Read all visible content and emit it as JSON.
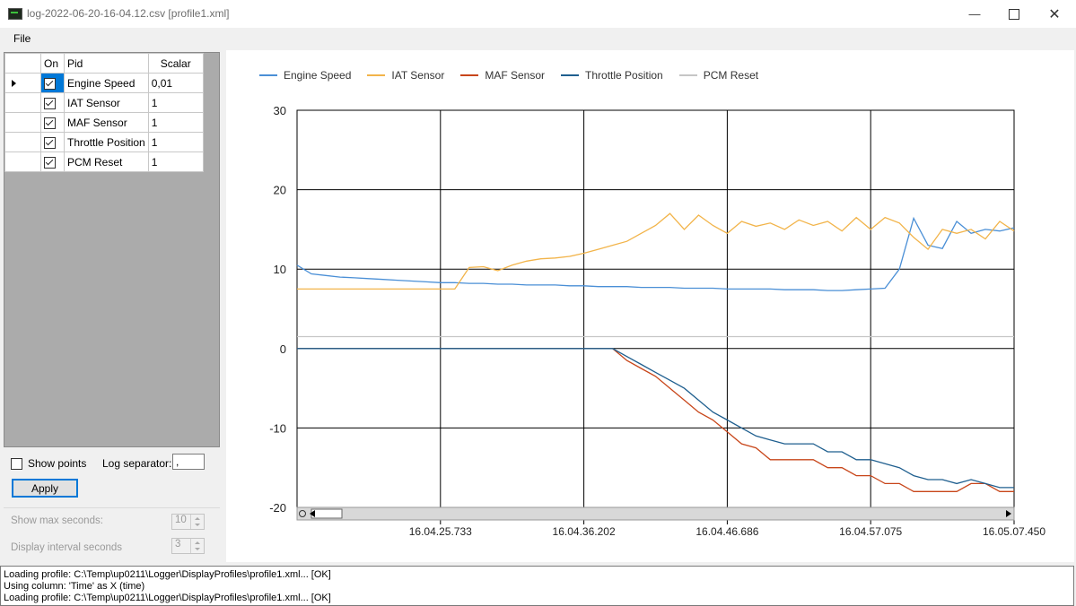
{
  "window": {
    "title": "log-2022-06-20-16-04.12.csv [profile1.xml]",
    "minimize_icon": "minimize-icon",
    "maximize_icon": "maximize-icon",
    "close_icon": "close-icon"
  },
  "menu": {
    "file": "File"
  },
  "grid": {
    "headers": {
      "on": "On",
      "pid": "Pid",
      "scalar": "Scalar"
    },
    "rows": [
      {
        "on": true,
        "pid": "Engine Speed",
        "scalar": "0,01",
        "current": true
      },
      {
        "on": true,
        "pid": "IAT Sensor",
        "scalar": "1"
      },
      {
        "on": true,
        "pid": "MAF Sensor",
        "scalar": "1"
      },
      {
        "on": true,
        "pid": "Throttle Position",
        "scalar": "1"
      },
      {
        "on": true,
        "pid": "PCM Reset",
        "scalar": "1"
      }
    ]
  },
  "options": {
    "show_points_label": "Show points",
    "show_points_checked": false,
    "log_separator_label": "Log separator:",
    "log_separator_value": ",",
    "apply_label": "Apply",
    "max_seconds_label": "Show max seconds:",
    "max_seconds_value": "10",
    "interval_label": "Display interval seconds",
    "interval_value": "3"
  },
  "chart_data": {
    "type": "line",
    "ylim": [
      -20,
      30
    ],
    "yticks": [
      "30",
      "20",
      "10",
      "0",
      "-10",
      "-20"
    ],
    "xticks": [
      "16.04.25.733",
      "16.04.36.202",
      "16.04.46.686",
      "16.04.57.075",
      "16.05.07.450"
    ],
    "grid": true,
    "legend_position": "top-left",
    "x": [
      0,
      1,
      2,
      3,
      4,
      5,
      6,
      7,
      8,
      9,
      10,
      11,
      12,
      13,
      14,
      15,
      16,
      17,
      18,
      19,
      20,
      21,
      22,
      23,
      24,
      25,
      26,
      27,
      28,
      29,
      30,
      31,
      32,
      33,
      34,
      35,
      36,
      37,
      38,
      39,
      40,
      41,
      42,
      43,
      44,
      45,
      46,
      47,
      48,
      49,
      50
    ],
    "series": [
      {
        "name": "Engine Speed",
        "color": "#4a8fd6",
        "values": [
          10.5,
          9.4,
          9.2,
          9.0,
          8.9,
          8.8,
          8.7,
          8.6,
          8.5,
          8.4,
          8.3,
          8.3,
          8.2,
          8.2,
          8.1,
          8.1,
          8.0,
          8.0,
          8.0,
          7.9,
          7.9,
          7.8,
          7.8,
          7.8,
          7.7,
          7.7,
          7.7,
          7.6,
          7.6,
          7.6,
          7.5,
          7.5,
          7.5,
          7.5,
          7.4,
          7.4,
          7.4,
          7.3,
          7.3,
          7.4,
          7.5,
          7.6,
          10.0,
          16.4,
          13.0,
          12.6,
          16.0,
          14.5,
          15.0,
          14.8,
          15.2
        ]
      },
      {
        "name": "IAT Sensor",
        "color": "#f2b44a",
        "values": [
          7.5,
          7.5,
          7.5,
          7.5,
          7.5,
          7.5,
          7.5,
          7.5,
          7.5,
          7.5,
          7.5,
          7.5,
          10.2,
          10.3,
          9.8,
          10.5,
          11.0,
          11.3,
          11.4,
          11.6,
          12.0,
          12.5,
          13.0,
          13.5,
          14.5,
          15.5,
          17.0,
          15.0,
          16.8,
          15.5,
          14.5,
          16.0,
          15.4,
          15.8,
          15.0,
          16.2,
          15.5,
          16.0,
          14.8,
          16.5,
          15.0,
          16.5,
          15.8,
          14.0,
          12.5,
          15.0,
          14.5,
          15.0,
          13.8,
          16.0,
          14.8
        ]
      },
      {
        "name": "MAF Sensor",
        "color": "#c8461a",
        "values": [
          0,
          0,
          0,
          0,
          0,
          0,
          0,
          0,
          0,
          0,
          0,
          0,
          0,
          0,
          0,
          0,
          0,
          0,
          0,
          0,
          0,
          0,
          0,
          -1.5,
          -2.5,
          -3.5,
          -5,
          -6.5,
          -8,
          -9,
          -10.5,
          -12,
          -12.5,
          -14,
          -14,
          -14,
          -14,
          -15,
          -15,
          -16,
          -16,
          -17,
          -17,
          -18,
          -18,
          -18,
          -18,
          -17,
          -17,
          -18,
          -18
        ]
      },
      {
        "name": "Throttle Position",
        "color": "#1f5f8f",
        "values": [
          0,
          0,
          0,
          0,
          0,
          0,
          0,
          0,
          0,
          0,
          0,
          0,
          0,
          0,
          0,
          0,
          0,
          0,
          0,
          0,
          0,
          0,
          0,
          -1,
          -2,
          -3,
          -4,
          -5,
          -6.5,
          -8,
          -9,
          -10,
          -11,
          -11.5,
          -12,
          -12,
          -12,
          -13,
          -13,
          -14,
          -14,
          -14.5,
          -15,
          -16,
          -16.5,
          -16.5,
          -17,
          -16.5,
          -17,
          -17.5,
          -17.5
        ]
      },
      {
        "name": "PCM Reset",
        "color": "#c6c6c6",
        "values": [
          1.5,
          1.5,
          1.5,
          1.5,
          1.5,
          1.5,
          1.5,
          1.5,
          1.5,
          1.5,
          1.5,
          1.5,
          1.5,
          1.5,
          1.5,
          1.5,
          1.5,
          1.5,
          1.5,
          1.5,
          1.5,
          1.5,
          1.5,
          1.5,
          1.5,
          1.5,
          1.5,
          1.5,
          1.5,
          1.5,
          1.5,
          1.5,
          1.5,
          1.5,
          1.5,
          1.5,
          1.5,
          1.5,
          1.5,
          1.5,
          1.5,
          1.5,
          1.5,
          1.5,
          1.5,
          1.5,
          1.5,
          1.5,
          1.5,
          1.5,
          1.5
        ]
      }
    ]
  },
  "log": [
    "Loading profile: C:\\Temp\\up0211\\Logger\\DisplayProfiles\\profile1.xml...  [OK]",
    "Using column: 'Time' as X (time)",
    "Loading profile: C:\\Temp\\up0211\\Logger\\DisplayProfiles\\profile1.xml...  [OK]"
  ]
}
